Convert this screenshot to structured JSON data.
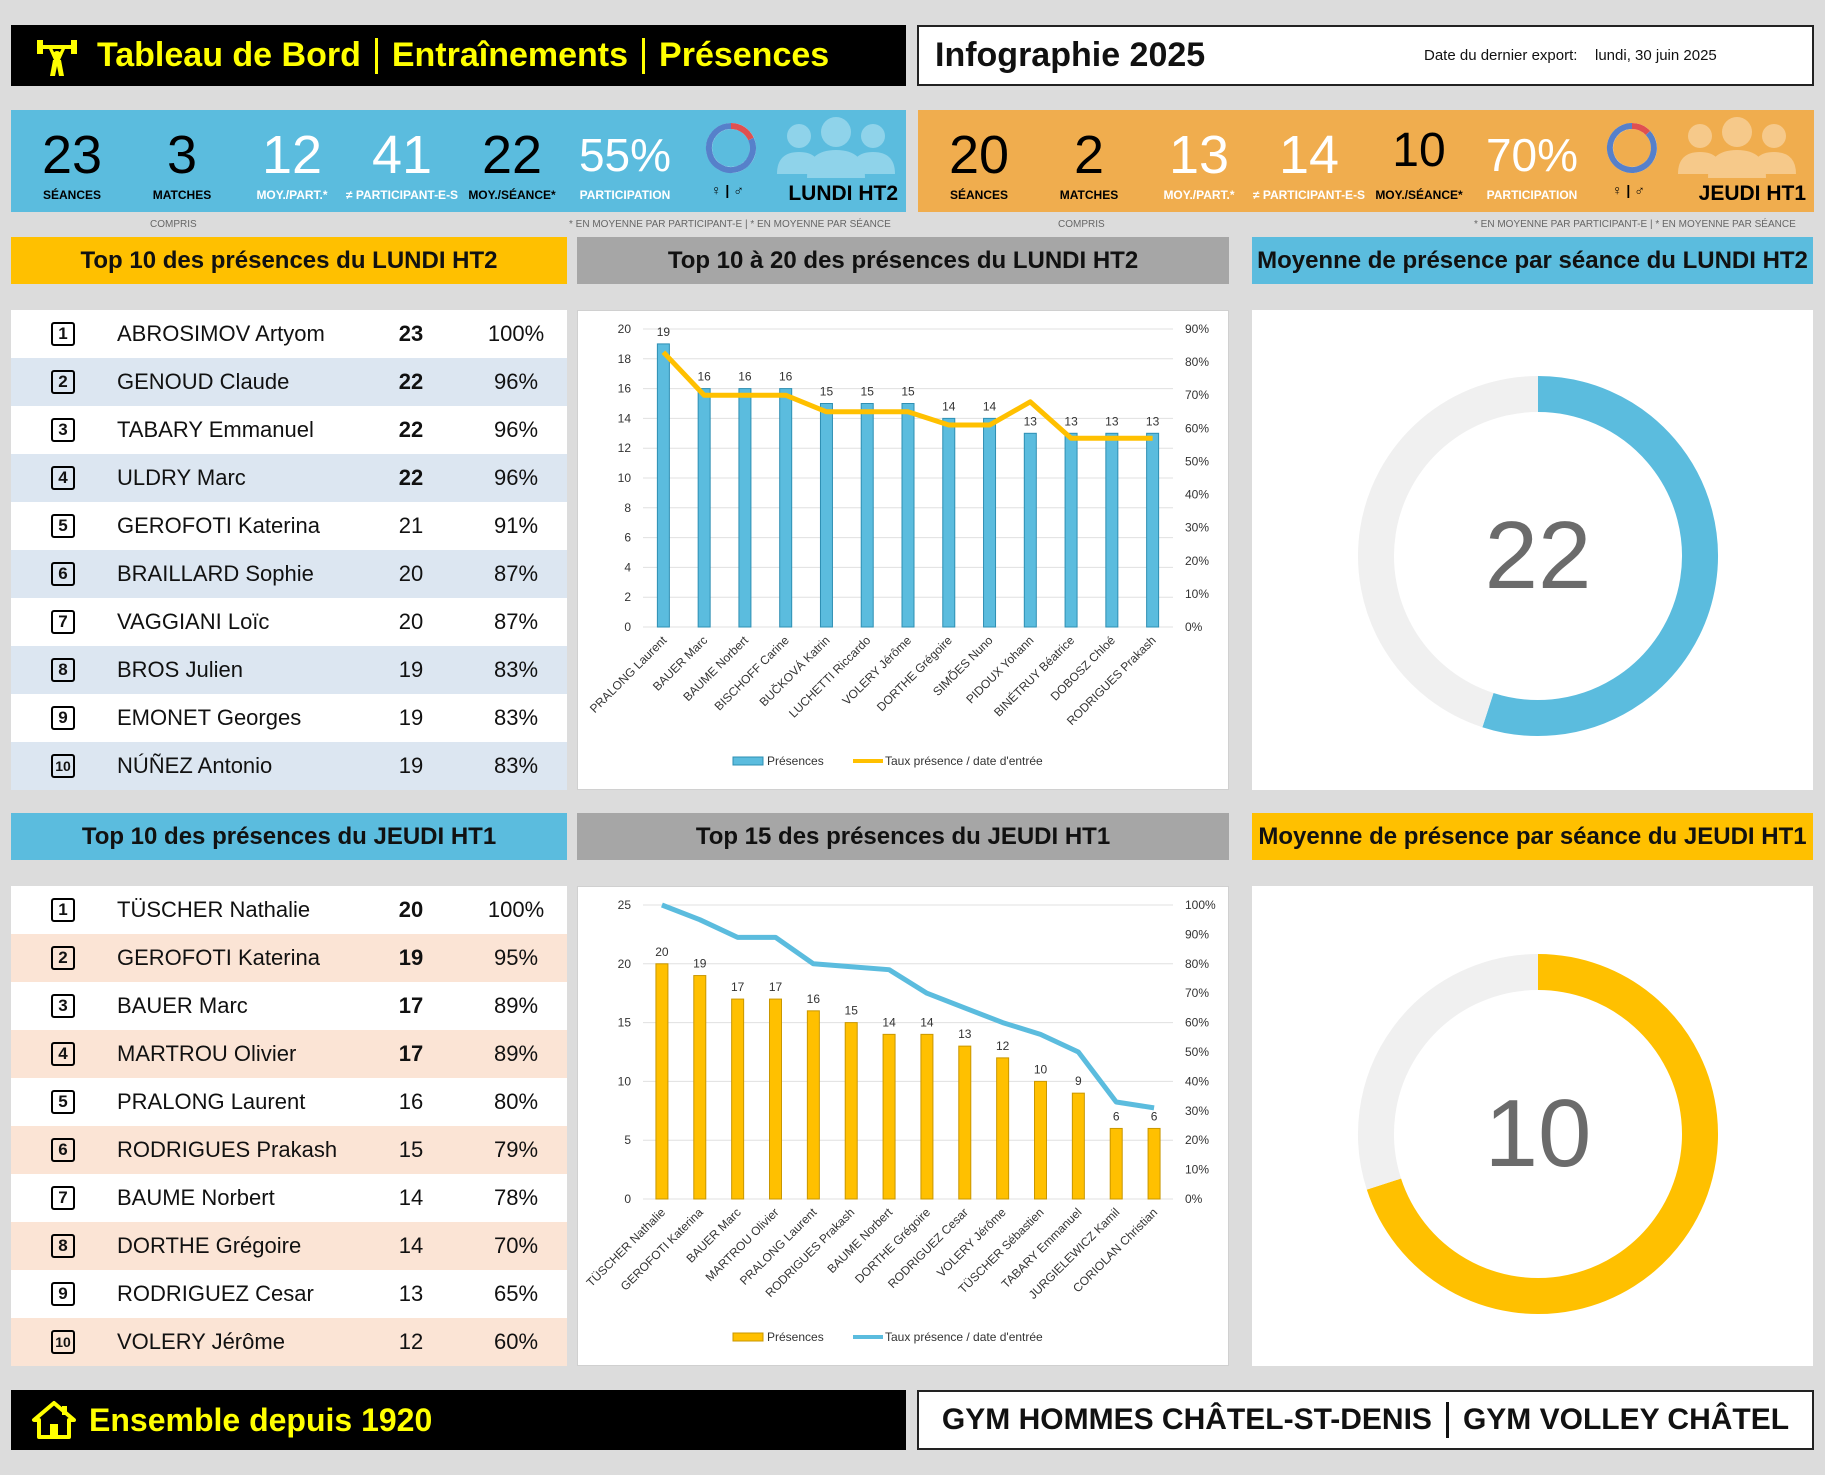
{
  "header": {
    "title_parts": [
      "Tableau de Bord",
      "Entraînements",
      "Présences"
    ],
    "infographie": "Infographie 2025",
    "export_label": "Date du dernier export:",
    "export_date": "lundi, 30 juin 2025"
  },
  "colors": {
    "blue": "#5bbcde",
    "orange": "#f0ad4e",
    "yellow": "#ffc000",
    "gold": "#f4c430"
  },
  "lundi": {
    "seances": "23",
    "seances_label": "SÉANCES",
    "matches": "3",
    "matches_label": "MATCHES",
    "matches_sub": "COMPRIS",
    "moy_part": "12",
    "moy_part_label": "MOY./PART.*",
    "participants": "41",
    "participants_label": "≠ PARTICIPANT-E-S",
    "moy_seance": "22",
    "moy_seance_label": "MOY./SÉANCE*",
    "participation": "55%",
    "participation_label": "PARTICIPATION",
    "gender_label": "♀ | ♂",
    "group": "LUNDI HT2",
    "footnote": "* EN MOYENNE PAR PARTICIPANT-E  |  * EN MOYENNE PAR SÉANCE"
  },
  "jeudi": {
    "seances": "20",
    "seances_label": "SÉANCES",
    "matches": "2",
    "matches_label": "MATCHES",
    "matches_sub": "COMPRIS",
    "moy_part": "13",
    "moy_part_label": "MOY./PART.*",
    "participants": "14",
    "participants_label": "≠ PARTICIPANT-E-S",
    "moy_seance": "10",
    "moy_seance_label": "MOY./SÉANCE*",
    "participation": "70%",
    "participation_label": "PARTICIPATION",
    "gender_label": "♀ | ♂",
    "group": "JEUDI HT1",
    "footnote": "* EN MOYENNE PAR PARTICIPANT-E  |  * EN MOYENNE PAR SÉANCE"
  },
  "sections": {
    "top10_lundi": "Top 10 des présences du LUNDI HT2",
    "top1020_lundi": "Top 10 à 20 des présences du LUNDI HT2",
    "avg_lundi": "Moyenne de présence par séance du LUNDI HT2",
    "top10_jeudi": "Top 10 des présences du JEUDI HT1",
    "top15_jeudi": "Top 15 des présences du JEUDI HT1",
    "avg_jeudi": "Moyenne de présence par séance du JEUDI HT1"
  },
  "top10_lundi": [
    {
      "rank": "1",
      "name": "ABROSIMOV Artyom",
      "count": "23",
      "pct": "100%",
      "bold": true
    },
    {
      "rank": "2",
      "name": "GENOUD Claude",
      "count": "22",
      "pct": "96%",
      "bold": true
    },
    {
      "rank": "3",
      "name": "TABARY Emmanuel",
      "count": "22",
      "pct": "96%",
      "bold": true
    },
    {
      "rank": "4",
      "name": "ULDRY Marc",
      "count": "22",
      "pct": "96%",
      "bold": true
    },
    {
      "rank": "5",
      "name": "GEROFOTI Katerina",
      "count": "21",
      "pct": "91%",
      "bold": false
    },
    {
      "rank": "6",
      "name": "BRAILLARD Sophie",
      "count": "20",
      "pct": "87%",
      "bold": false
    },
    {
      "rank": "7",
      "name": "VAGGIANI Loïc",
      "count": "20",
      "pct": "87%",
      "bold": false
    },
    {
      "rank": "8",
      "name": "BROS Julien",
      "count": "19",
      "pct": "83%",
      "bold": false
    },
    {
      "rank": "9",
      "name": "EMONET Georges",
      "count": "19",
      "pct": "83%",
      "bold": false
    },
    {
      "rank": "10",
      "name": "NÚÑEZ Antonio",
      "count": "19",
      "pct": "83%",
      "bold": false
    }
  ],
  "top10_jeudi": [
    {
      "rank": "1",
      "name": "TÜSCHER Nathalie",
      "count": "20",
      "pct": "100%",
      "bold": true
    },
    {
      "rank": "2",
      "name": "GEROFOTI Katerina",
      "count": "19",
      "pct": "95%",
      "bold": true
    },
    {
      "rank": "3",
      "name": "BAUER Marc",
      "count": "17",
      "pct": "89%",
      "bold": true
    },
    {
      "rank": "4",
      "name": "MARTROU Olivier",
      "count": "17",
      "pct": "89%",
      "bold": true
    },
    {
      "rank": "5",
      "name": "PRALONG Laurent",
      "count": "16",
      "pct": "80%",
      "bold": false
    },
    {
      "rank": "6",
      "name": "RODRIGUES Prakash",
      "count": "15",
      "pct": "79%",
      "bold": false
    },
    {
      "rank": "7",
      "name": "BAUME Norbert",
      "count": "14",
      "pct": "78%",
      "bold": false
    },
    {
      "rank": "8",
      "name": "DORTHE Grégoire",
      "count": "14",
      "pct": "70%",
      "bold": false
    },
    {
      "rank": "9",
      "name": "RODRIGUEZ Cesar",
      "count": "13",
      "pct": "65%",
      "bold": false
    },
    {
      "rank": "10",
      "name": "VOLERY Jérôme",
      "count": "12",
      "pct": "60%",
      "bold": false
    }
  ],
  "chart_data": [
    {
      "type": "bar",
      "categories": [
        "PRALONG Laurent",
        "BAUER Marc",
        "BAUME Norbert",
        "BISCHOFF Carine",
        "BUČKOVÁ Katrin",
        "LUCHETTI Riccardo",
        "VOLERY Jérôme",
        "DORTHE Grégoire",
        "SIMÕES Nuno",
        "PIDOUX Yohann",
        "BINÉTRUY Béatrice",
        "DOBOSZ Chloé",
        "RODRIGUES Prakash"
      ],
      "series": [
        {
          "name": "Présences",
          "type": "bar",
          "axis": "left",
          "values": [
            19,
            16,
            16,
            16,
            15,
            15,
            15,
            14,
            14,
            13,
            13,
            13,
            13
          ]
        },
        {
          "name": "Taux présence / date d'entrée",
          "type": "line",
          "axis": "right",
          "values": [
            83,
            70,
            70,
            70,
            65,
            65,
            65,
            61,
            61,
            68,
            57,
            57,
            57
          ]
        }
      ],
      "ylim": [
        0,
        20
      ],
      "yticks": [
        0,
        2,
        4,
        6,
        8,
        10,
        12,
        14,
        16,
        18,
        20
      ],
      "y2lim": [
        0,
        90
      ],
      "y2ticks": [
        "0%",
        "10%",
        "20%",
        "30%",
        "40%",
        "50%",
        "60%",
        "70%",
        "80%",
        "90%"
      ],
      "legend": "bottom",
      "grid": true
    },
    {
      "type": "bar",
      "categories": [
        "TÜSCHER Nathalie",
        "GEROFOTI Katerina",
        "BAUER Marc",
        "MARTROU Olivier",
        "PRALONG Laurent",
        "RODRIGUES Prakash",
        "BAUME Norbert",
        "DORTHE Grégoire",
        "RODRIGUEZ Cesar",
        "VOLERY Jérôme",
        "TÜSCHER Sébastien",
        "TABARY Emmanuel",
        "JURGIELEWICZ Kamil",
        "CORIOLAN Christian"
      ],
      "series": [
        {
          "name": "Présences",
          "type": "bar",
          "axis": "left",
          "values": [
            20,
            19,
            17,
            17,
            16,
            15,
            14,
            14,
            13,
            12,
            10,
            9,
            6,
            6
          ]
        },
        {
          "name": "Taux présence / date d'entrée",
          "type": "line",
          "axis": "right",
          "values": [
            100,
            95,
            89,
            89,
            80,
            79,
            78,
            70,
            65,
            60,
            56,
            50,
            33,
            31
          ]
        }
      ],
      "ylim": [
        0,
        25
      ],
      "yticks": [
        0,
        5,
        10,
        15,
        20,
        25
      ],
      "y2lim": [
        0,
        100
      ],
      "y2ticks": [
        "0%",
        "10%",
        "20%",
        "30%",
        "40%",
        "50%",
        "60%",
        "70%",
        "80%",
        "90%",
        "100%"
      ],
      "legend": "bottom",
      "grid": true
    },
    {
      "type": "pie",
      "variant": "donut",
      "center_label": "22",
      "values": [
        55,
        45
      ],
      "colors": [
        "#5bbcde",
        "#f0f0f0"
      ]
    },
    {
      "type": "pie",
      "variant": "donut",
      "center_label": "10",
      "values": [
        70,
        30
      ],
      "colors": [
        "#ffc000",
        "#f0f0f0"
      ]
    }
  ],
  "footer": {
    "slogan": "Ensemble depuis 1920",
    "club1": "GYM HOMMES CHÂTEL-ST-DENIS",
    "club2": "GYM VOLLEY CHÂTEL"
  }
}
